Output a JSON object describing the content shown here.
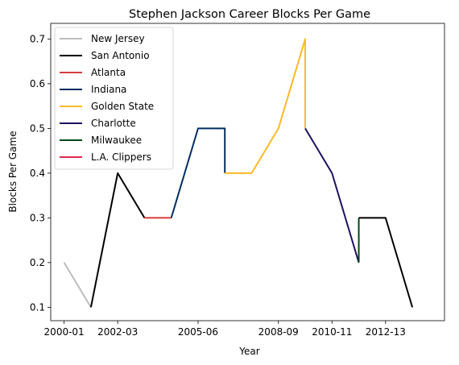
{
  "chart_data": {
    "type": "line",
    "title": "Stephen Jackson Career Blocks Per Game",
    "xlabel": "Year",
    "ylabel": "Blocks Per Game",
    "xticks": [
      "2000-01",
      "2002-03",
      "2005-06",
      "2008-09",
      "2010-11",
      "2012-13"
    ],
    "yticks": [
      "0.1",
      "0.2",
      "0.3",
      "0.4",
      "0.5",
      "0.6",
      "0.7"
    ],
    "ylim": [
      0.07,
      0.735
    ],
    "grid": false,
    "legend_position": "top-left",
    "series": [
      {
        "name": "New Jersey",
        "color": "#bdbdbd",
        "points": [
          [
            "2000-01",
            0.2
          ],
          [
            "2001-02",
            0.1
          ]
        ]
      },
      {
        "name": "San Antonio",
        "color": "#000000",
        "points": [
          [
            "2001-02",
            0.1
          ],
          [
            "2002-03",
            0.4
          ],
          [
            "2003-04",
            0.3
          ]
        ]
      },
      {
        "name": "Atlanta",
        "color": "#d93b3b",
        "points": [
          [
            "2003-04",
            0.3
          ],
          [
            "2004-05",
            0.3
          ]
        ]
      },
      {
        "name": "Indiana",
        "color": "#002d62",
        "points": [
          [
            "2004-05",
            0.3
          ],
          [
            "2005-06",
            0.5
          ],
          [
            "2006-07",
            0.5
          ],
          [
            "2006-07",
            0.4
          ]
        ]
      },
      {
        "name": "Golden State",
        "color": "#fdb927",
        "points": [
          [
            "2006-07",
            0.4
          ],
          [
            "2007-08",
            0.4
          ],
          [
            "2008-09",
            0.5
          ],
          [
            "2009-10",
            0.7
          ],
          [
            "2009-10",
            0.5
          ]
        ]
      },
      {
        "name": "Charlotte",
        "color": "#1d1160",
        "points": [
          [
            "2009-10",
            0.5
          ],
          [
            "2010-11",
            0.4
          ],
          [
            "2011-12",
            0.2
          ]
        ]
      },
      {
        "name": "Milwaukee",
        "color": "#00471b",
        "points": [
          [
            "2011-12",
            0.2
          ],
          [
            "2011-12",
            0.3
          ]
        ]
      },
      {
        "name": "L.A. Clippers",
        "color": "#e0294f",
        "points": []
      },
      {
        "name": "San Antonio",
        "color": "#000000",
        "legend": false,
        "points": [
          [
            "2011-12",
            0.3
          ],
          [
            "2012-13",
            0.3
          ],
          [
            "2013-14",
            0.1
          ]
        ]
      }
    ]
  }
}
